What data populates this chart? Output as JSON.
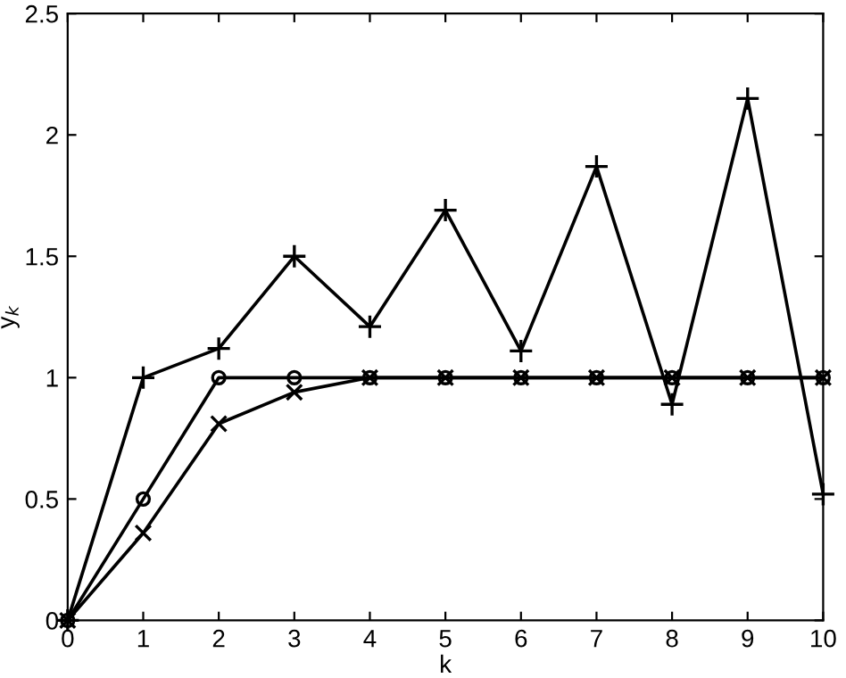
{
  "chart_data": {
    "type": "line",
    "xlabel": "k",
    "ylabel": "y$_{k}$",
    "x": [
      0,
      1,
      2,
      3,
      4,
      5,
      6,
      7,
      8,
      9,
      10
    ],
    "series": [
      {
        "color": "#000000",
        "marker": "plus",
        "values": [
          0,
          1,
          1.12,
          1.5,
          1.21,
          1.69,
          1.11,
          1.87,
          0.89,
          2.15,
          0.52
        ]
      },
      {
        "color": "#000000",
        "marker": "circle",
        "values": [
          0,
          0.5,
          1,
          1,
          1,
          1,
          1,
          1,
          1,
          1,
          1
        ]
      },
      {
        "color": "#000000",
        "marker": "cross",
        "values": [
          0,
          0.36,
          0.81,
          0.94,
          1,
          1,
          1,
          1,
          1,
          1,
          1
        ]
      }
    ],
    "xlim": [
      0,
      10
    ],
    "ylim": [
      0,
      2.5
    ],
    "xticks": [
      0,
      1,
      2,
      3,
      4,
      5,
      6,
      7,
      8,
      9,
      10
    ],
    "yticks": [
      0,
      0.5,
      1,
      1.5,
      2,
      2.5
    ],
    "grid": false,
    "line_style": "solid"
  }
}
